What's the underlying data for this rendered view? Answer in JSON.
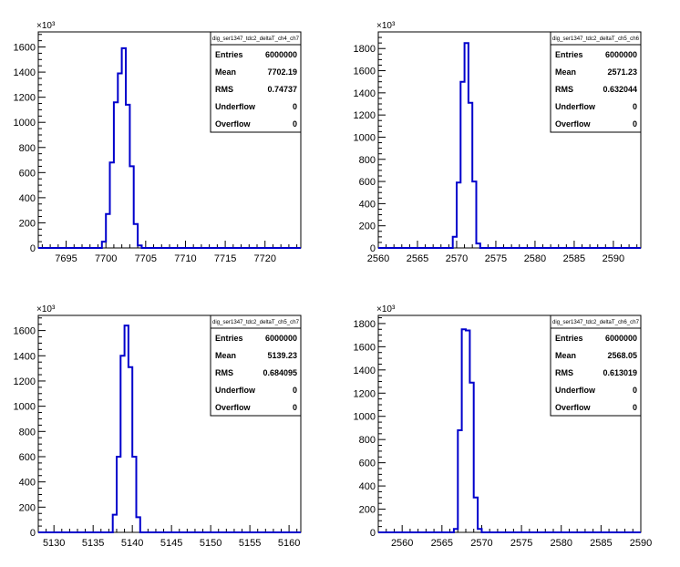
{
  "panels": [
    {
      "chart_data": {
        "type": "histogram",
        "title": "",
        "xlabel": "",
        "ylabel": "",
        "y_exponent_label": "×10³",
        "xlim": [
          7691.5,
          7724.5
        ],
        "ylim": [
          0,
          1720
        ],
        "xticks": [
          7695,
          7700,
          7705,
          7710,
          7715,
          7720
        ],
        "yticks": [
          0,
          200,
          400,
          600,
          800,
          1000,
          1200,
          1400,
          1600
        ],
        "bin_width": 0.5,
        "bins": [
          {
            "x": 7699.0,
            "y": 0
          },
          {
            "x": 7699.5,
            "y": 50
          },
          {
            "x": 7700.0,
            "y": 270
          },
          {
            "x": 7700.5,
            "y": 680
          },
          {
            "x": 7701.0,
            "y": 1160
          },
          {
            "x": 7701.5,
            "y": 1390
          },
          {
            "x": 7702.0,
            "y": 1590
          },
          {
            "x": 7702.5,
            "y": 1140
          },
          {
            "x": 7703.0,
            "y": 650
          },
          {
            "x": 7703.5,
            "y": 190
          },
          {
            "x": 7704.0,
            "y": 20
          },
          {
            "x": 7704.5,
            "y": 0
          }
        ],
        "stats_box": {
          "name": "dig_ser1347_tdc2_deltaT_ch4_ch7",
          "rows": [
            {
              "label": "Entries",
              "value": "6000000"
            },
            {
              "label": "Mean",
              "value": "7702.19"
            },
            {
              "label": "RMS",
              "value": "0.74737"
            },
            {
              "label": "Underflow",
              "value": "0"
            },
            {
              "label": "Overflow",
              "value": "0"
            }
          ]
        },
        "line_color": "#0000cc"
      }
    },
    {
      "chart_data": {
        "type": "histogram",
        "title": "",
        "xlabel": "",
        "ylabel": "",
        "y_exponent_label": "×10³",
        "xlim": [
          2560,
          2593.5
        ],
        "ylim": [
          0,
          1950
        ],
        "xticks": [
          2560,
          2565,
          2570,
          2575,
          2580,
          2585,
          2590
        ],
        "yticks": [
          0,
          200,
          400,
          600,
          800,
          1000,
          1200,
          1400,
          1600,
          1800
        ],
        "bin_width": 0.5,
        "bins": [
          {
            "x": 2569.0,
            "y": 0
          },
          {
            "x": 2569.5,
            "y": 100
          },
          {
            "x": 2570.0,
            "y": 590
          },
          {
            "x": 2570.5,
            "y": 1500
          },
          {
            "x": 2571.0,
            "y": 1850
          },
          {
            "x": 2571.5,
            "y": 1310
          },
          {
            "x": 2572.0,
            "y": 600
          },
          {
            "x": 2572.5,
            "y": 40
          },
          {
            "x": 2573.0,
            "y": 0
          }
        ],
        "stats_box": {
          "name": "dig_ser1347_tdc2_deltaT_ch5_ch6",
          "rows": [
            {
              "label": "Entries",
              "value": "6000000"
            },
            {
              "label": "Mean",
              "value": "2571.23"
            },
            {
              "label": "RMS",
              "value": "0.632044"
            },
            {
              "label": "Underflow",
              "value": "0"
            },
            {
              "label": "Overflow",
              "value": "0"
            }
          ]
        },
        "line_color": "#0000cc"
      }
    },
    {
      "chart_data": {
        "type": "histogram",
        "title": "",
        "xlabel": "",
        "ylabel": "",
        "y_exponent_label": "×10³",
        "xlim": [
          5128,
          5161.5
        ],
        "ylim": [
          0,
          1720
        ],
        "xticks": [
          5130,
          5135,
          5140,
          5145,
          5150,
          5155,
          5160
        ],
        "yticks": [
          0,
          200,
          400,
          600,
          800,
          1000,
          1200,
          1400,
          1600
        ],
        "bin_width": 0.5,
        "bins": [
          {
            "x": 5137.0,
            "y": 0
          },
          {
            "x": 5137.5,
            "y": 140
          },
          {
            "x": 5138.0,
            "y": 600
          },
          {
            "x": 5138.5,
            "y": 1400
          },
          {
            "x": 5139.0,
            "y": 1640
          },
          {
            "x": 5139.5,
            "y": 1310
          },
          {
            "x": 5140.0,
            "y": 600
          },
          {
            "x": 5140.5,
            "y": 120
          },
          {
            "x": 5141.0,
            "y": 0
          }
        ],
        "stats_box": {
          "name": "dig_ser1347_tdc2_deltaT_ch5_ch7",
          "rows": [
            {
              "label": "Entries",
              "value": "6000000"
            },
            {
              "label": "Mean",
              "value": "5139.23"
            },
            {
              "label": "RMS",
              "value": "0.684095"
            },
            {
              "label": "Underflow",
              "value": "0"
            },
            {
              "label": "Overflow",
              "value": "0"
            }
          ]
        },
        "line_color": "#0000cc"
      }
    },
    {
      "chart_data": {
        "type": "histogram",
        "title": "",
        "xlabel": "",
        "ylabel": "",
        "y_exponent_label": "×10³",
        "xlim": [
          2557,
          2590
        ],
        "ylim": [
          0,
          1870
        ],
        "xticks": [
          2560,
          2565,
          2570,
          2575,
          2580,
          2585,
          2590
        ],
        "yticks": [
          0,
          200,
          400,
          600,
          800,
          1000,
          1200,
          1400,
          1600,
          1800
        ],
        "bin_width": 0.5,
        "bins": [
          {
            "x": 2566.0,
            "y": 0
          },
          {
            "x": 2566.5,
            "y": 30
          },
          {
            "x": 2567.0,
            "y": 880
          },
          {
            "x": 2567.5,
            "y": 1750
          },
          {
            "x": 2568.0,
            "y": 1740
          },
          {
            "x": 2568.5,
            "y": 1290
          },
          {
            "x": 2569.0,
            "y": 300
          },
          {
            "x": 2569.5,
            "y": 30
          },
          {
            "x": 2570.0,
            "y": 0
          }
        ],
        "stats_box": {
          "name": "dig_ser1347_tdc2_deltaT_ch6_ch7",
          "rows": [
            {
              "label": "Entries",
              "value": "6000000"
            },
            {
              "label": "Mean",
              "value": "2568.05"
            },
            {
              "label": "RMS",
              "value": "0.613019"
            },
            {
              "label": "Underflow",
              "value": "0"
            },
            {
              "label": "Overflow",
              "value": "0"
            }
          ]
        },
        "line_color": "#0000cc"
      }
    }
  ]
}
